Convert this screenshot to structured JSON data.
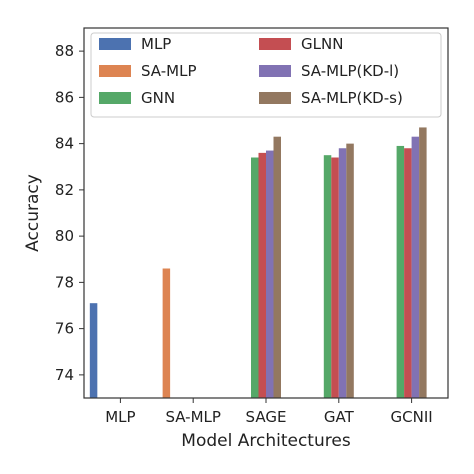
{
  "chart_data": {
    "type": "bar",
    "title": "",
    "xlabel": "Model Architectures",
    "ylabel": "Accuracy",
    "ylim": [
      73,
      89
    ],
    "yticks": [
      74,
      76,
      78,
      80,
      82,
      84,
      86,
      88
    ],
    "categories": [
      "MLP",
      "SA-MLP",
      "SAGE",
      "GAT",
      "GCNII"
    ],
    "legend_position": "top",
    "legend_columns": 2,
    "grid": false,
    "series": [
      {
        "name": "MLP",
        "color": "#4c72b0",
        "values": [
          77.1,
          null,
          null,
          null,
          null
        ]
      },
      {
        "name": "SA-MLP",
        "color": "#dd8452",
        "values": [
          null,
          78.6,
          null,
          null,
          null
        ]
      },
      {
        "name": "GNN",
        "color": "#55a868",
        "values": [
          null,
          null,
          83.4,
          83.5,
          83.9
        ]
      },
      {
        "name": "GLNN",
        "color": "#c44e52",
        "values": [
          null,
          null,
          83.6,
          83.4,
          83.8
        ]
      },
      {
        "name": "SA-MLP(KD-l)",
        "color": "#8172b3",
        "values": [
          null,
          null,
          83.7,
          83.8,
          84.3
        ]
      },
      {
        "name": "SA-MLP(KD-s)",
        "color": "#937860",
        "values": [
          null,
          null,
          84.3,
          84.0,
          84.7
        ]
      }
    ]
  }
}
